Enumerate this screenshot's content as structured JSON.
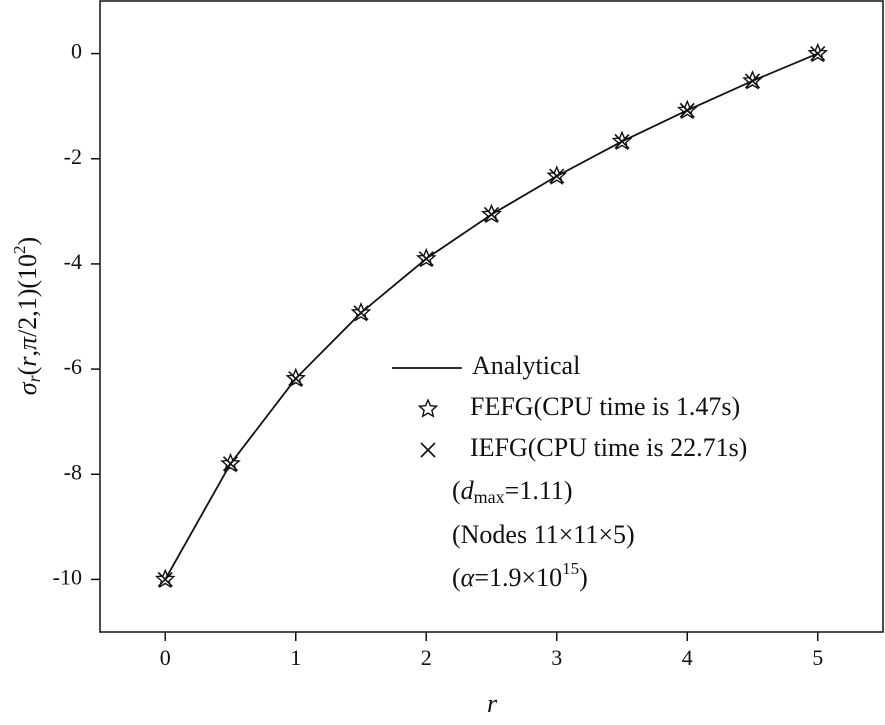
{
  "chart_data": {
    "type": "line",
    "x_label": "r",
    "y_label": [
      "σ",
      "r",
      "(",
      "r",
      ",",
      "π",
      "/2,1)(10",
      "2",
      ")"
    ],
    "x": [
      0,
      0.5,
      1,
      1.5,
      2,
      2.5,
      3,
      3.5,
      4,
      4.5,
      5
    ],
    "series": [
      {
        "name": "Analytical",
        "color": "#111111",
        "marker": "line",
        "values": [
          -10,
          -7.8,
          -6.18,
          -4.93,
          -3.9,
          -3.06,
          -2.33,
          -1.67,
          -1.08,
          -0.52,
          0
        ]
      },
      {
        "name": "FEFG(CPU time is 1.47s)",
        "color": "#111111",
        "marker": "star",
        "values": [
          -10,
          -7.8,
          -6.18,
          -4.93,
          -3.9,
          -3.06,
          -2.33,
          -1.67,
          -1.08,
          -0.52,
          0
        ]
      },
      {
        "name": "IEFG(CPU time is 22.71s)",
        "color": "#111111",
        "marker": "cross",
        "values": [
          -10,
          -7.8,
          -6.18,
          -4.93,
          -3.9,
          -3.06,
          -2.33,
          -1.67,
          -1.08,
          -0.52,
          0
        ]
      }
    ],
    "annotations": [
      [
        "(",
        "d",
        "max",
        "=1.11)"
      ],
      [
        "(Nodes 11×11×5)"
      ],
      [
        "(",
        "α",
        "=1.9×10",
        "15",
        ")"
      ]
    ],
    "xlim": [
      -0.5,
      5.5
    ],
    "xticks": [
      0,
      1,
      2,
      3,
      4,
      5
    ],
    "ylim": [
      -11,
      1
    ],
    "yticks": [
      0,
      -2,
      -4,
      -6,
      -8,
      -10
    ],
    "grid": false
  }
}
